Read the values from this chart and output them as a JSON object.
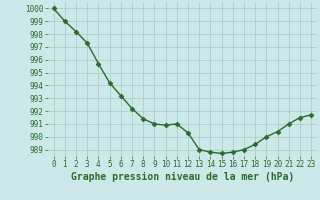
{
  "x": [
    0,
    1,
    2,
    3,
    4,
    5,
    6,
    7,
    8,
    9,
    10,
    11,
    12,
    13,
    14,
    15,
    16,
    17,
    18,
    19,
    20,
    21,
    22,
    23
  ],
  "y": [
    1000,
    999,
    998.2,
    997.3,
    995.7,
    994.2,
    993.2,
    992.2,
    991.4,
    991.0,
    990.9,
    991.0,
    990.3,
    989.0,
    988.8,
    988.7,
    988.8,
    989.0,
    989.4,
    990.0,
    990.4,
    991.0,
    991.5,
    991.7
  ],
  "line_color": "#2d6a2d",
  "marker": "D",
  "marker_size": 2.5,
  "bg_color": "#cce8e8",
  "grid_color": "#aac8c8",
  "xlabel": "Graphe pression niveau de la mer (hPa)",
  "xlabel_fontsize": 7,
  "ylim_min": 988.5,
  "ylim_max": 1000.5,
  "yticks": [
    989,
    990,
    991,
    992,
    993,
    994,
    995,
    996,
    997,
    998,
    999,
    1000
  ],
  "xticks": [
    0,
    1,
    2,
    3,
    4,
    5,
    6,
    7,
    8,
    9,
    10,
    11,
    12,
    13,
    14,
    15,
    16,
    17,
    18,
    19,
    20,
    21,
    22,
    23
  ],
  "tick_fontsize": 5.5,
  "line_width": 1.0
}
